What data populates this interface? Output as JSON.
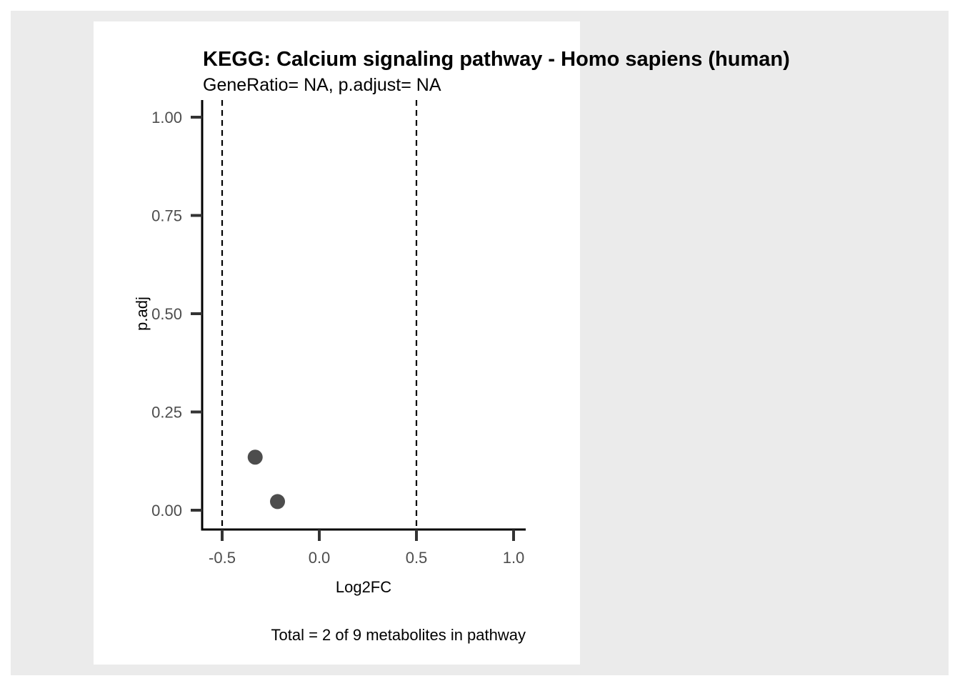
{
  "chart_data": {
    "type": "scatter",
    "title": "KEGG: Calcium signaling pathway - Homo sapiens (human)",
    "subtitle": "GeneRatio= NA, p.adjust= NA",
    "xlabel": "Log2FC",
    "ylabel": "p.adj",
    "caption": "Total = 2 of 9 metabolites in pathway",
    "xlim": [
      -0.6,
      1.06
    ],
    "ylim": [
      -0.1,
      1.05
    ],
    "x_ticks": [
      -0.5,
      0.0,
      0.5,
      1.0
    ],
    "x_tick_labels": [
      "-0.5",
      "0.0",
      "0.5",
      "1.0"
    ],
    "y_ticks": [
      0.0,
      0.25,
      0.5,
      0.75,
      1.0
    ],
    "y_tick_labels": [
      "0.00",
      "0.25",
      "0.50",
      "0.75",
      "1.00"
    ],
    "vlines": [
      -0.5,
      0.5
    ],
    "points": [
      {
        "x": -0.33,
        "y": 0.135
      },
      {
        "x": -0.215,
        "y": 0.022
      }
    ],
    "grid": false,
    "legend": "none",
    "colors": {
      "point": "#4d4d4d",
      "axis": "#000000",
      "tick": "#333333",
      "vline": "#000000",
      "outer_background": "#ebebeb",
      "panel_background": "#ffffff"
    }
  }
}
